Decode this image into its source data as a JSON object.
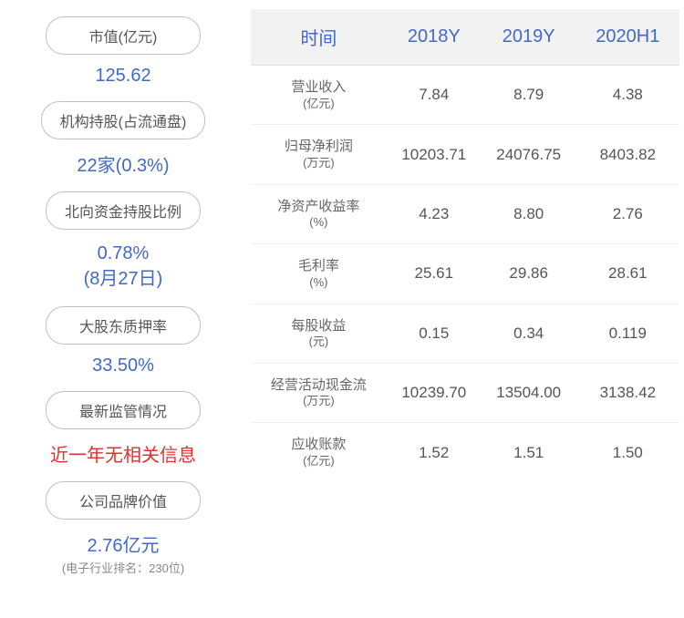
{
  "sidebar": {
    "items": [
      {
        "label": "市值(亿元)",
        "value": "125.62",
        "color": "blue",
        "sub": ""
      },
      {
        "label": "机构持股(占流通盘)",
        "value": "22家(0.3%)",
        "color": "blue",
        "sub": ""
      },
      {
        "label": "北向资金持股比例",
        "value": "0.78%",
        "value2": "(8月27日)",
        "color": "blue",
        "sub": ""
      },
      {
        "label": "大股东质押率",
        "value": "33.50%",
        "color": "blue",
        "sub": ""
      },
      {
        "label": "最新监管情况",
        "value": "近一年无相关信息",
        "color": "red",
        "sub": ""
      },
      {
        "label": "公司品牌价值",
        "value": "2.76亿元",
        "color": "blue",
        "sub": "(电子行业排名：230位)"
      }
    ]
  },
  "table": {
    "headers": [
      "时间",
      "2018Y",
      "2019Y",
      "2020H1"
    ],
    "rows": [
      {
        "label": "营业收入",
        "unit": "(亿元)",
        "values": [
          "7.84",
          "8.79",
          "4.38"
        ]
      },
      {
        "label": "归母净利润",
        "unit": "(万元)",
        "values": [
          "10203.71",
          "24076.75",
          "8403.82"
        ]
      },
      {
        "label": "净资产收益率",
        "unit": "(%)",
        "values": [
          "4.23",
          "8.80",
          "2.76"
        ]
      },
      {
        "label": "毛利率",
        "unit": "(%)",
        "values": [
          "25.61",
          "29.86",
          "28.61"
        ]
      },
      {
        "label": "每股收益",
        "unit": "(元)",
        "values": [
          "0.15",
          "0.34",
          "0.119"
        ]
      },
      {
        "label": "经营活动现金流",
        "unit": "(万元)",
        "values": [
          "10239.70",
          "13504.00",
          "3138.42"
        ]
      },
      {
        "label": "应收账款",
        "unit": "(亿元)",
        "values": [
          "1.52",
          "1.51",
          "1.50"
        ]
      }
    ]
  },
  "colors": {
    "header_bg": "#f2f2f2",
    "header_text": "#4169c8",
    "blue_value": "#4169c8",
    "red_value": "#e23030",
    "label_text": "#555555",
    "border": "#c0c0c0"
  }
}
